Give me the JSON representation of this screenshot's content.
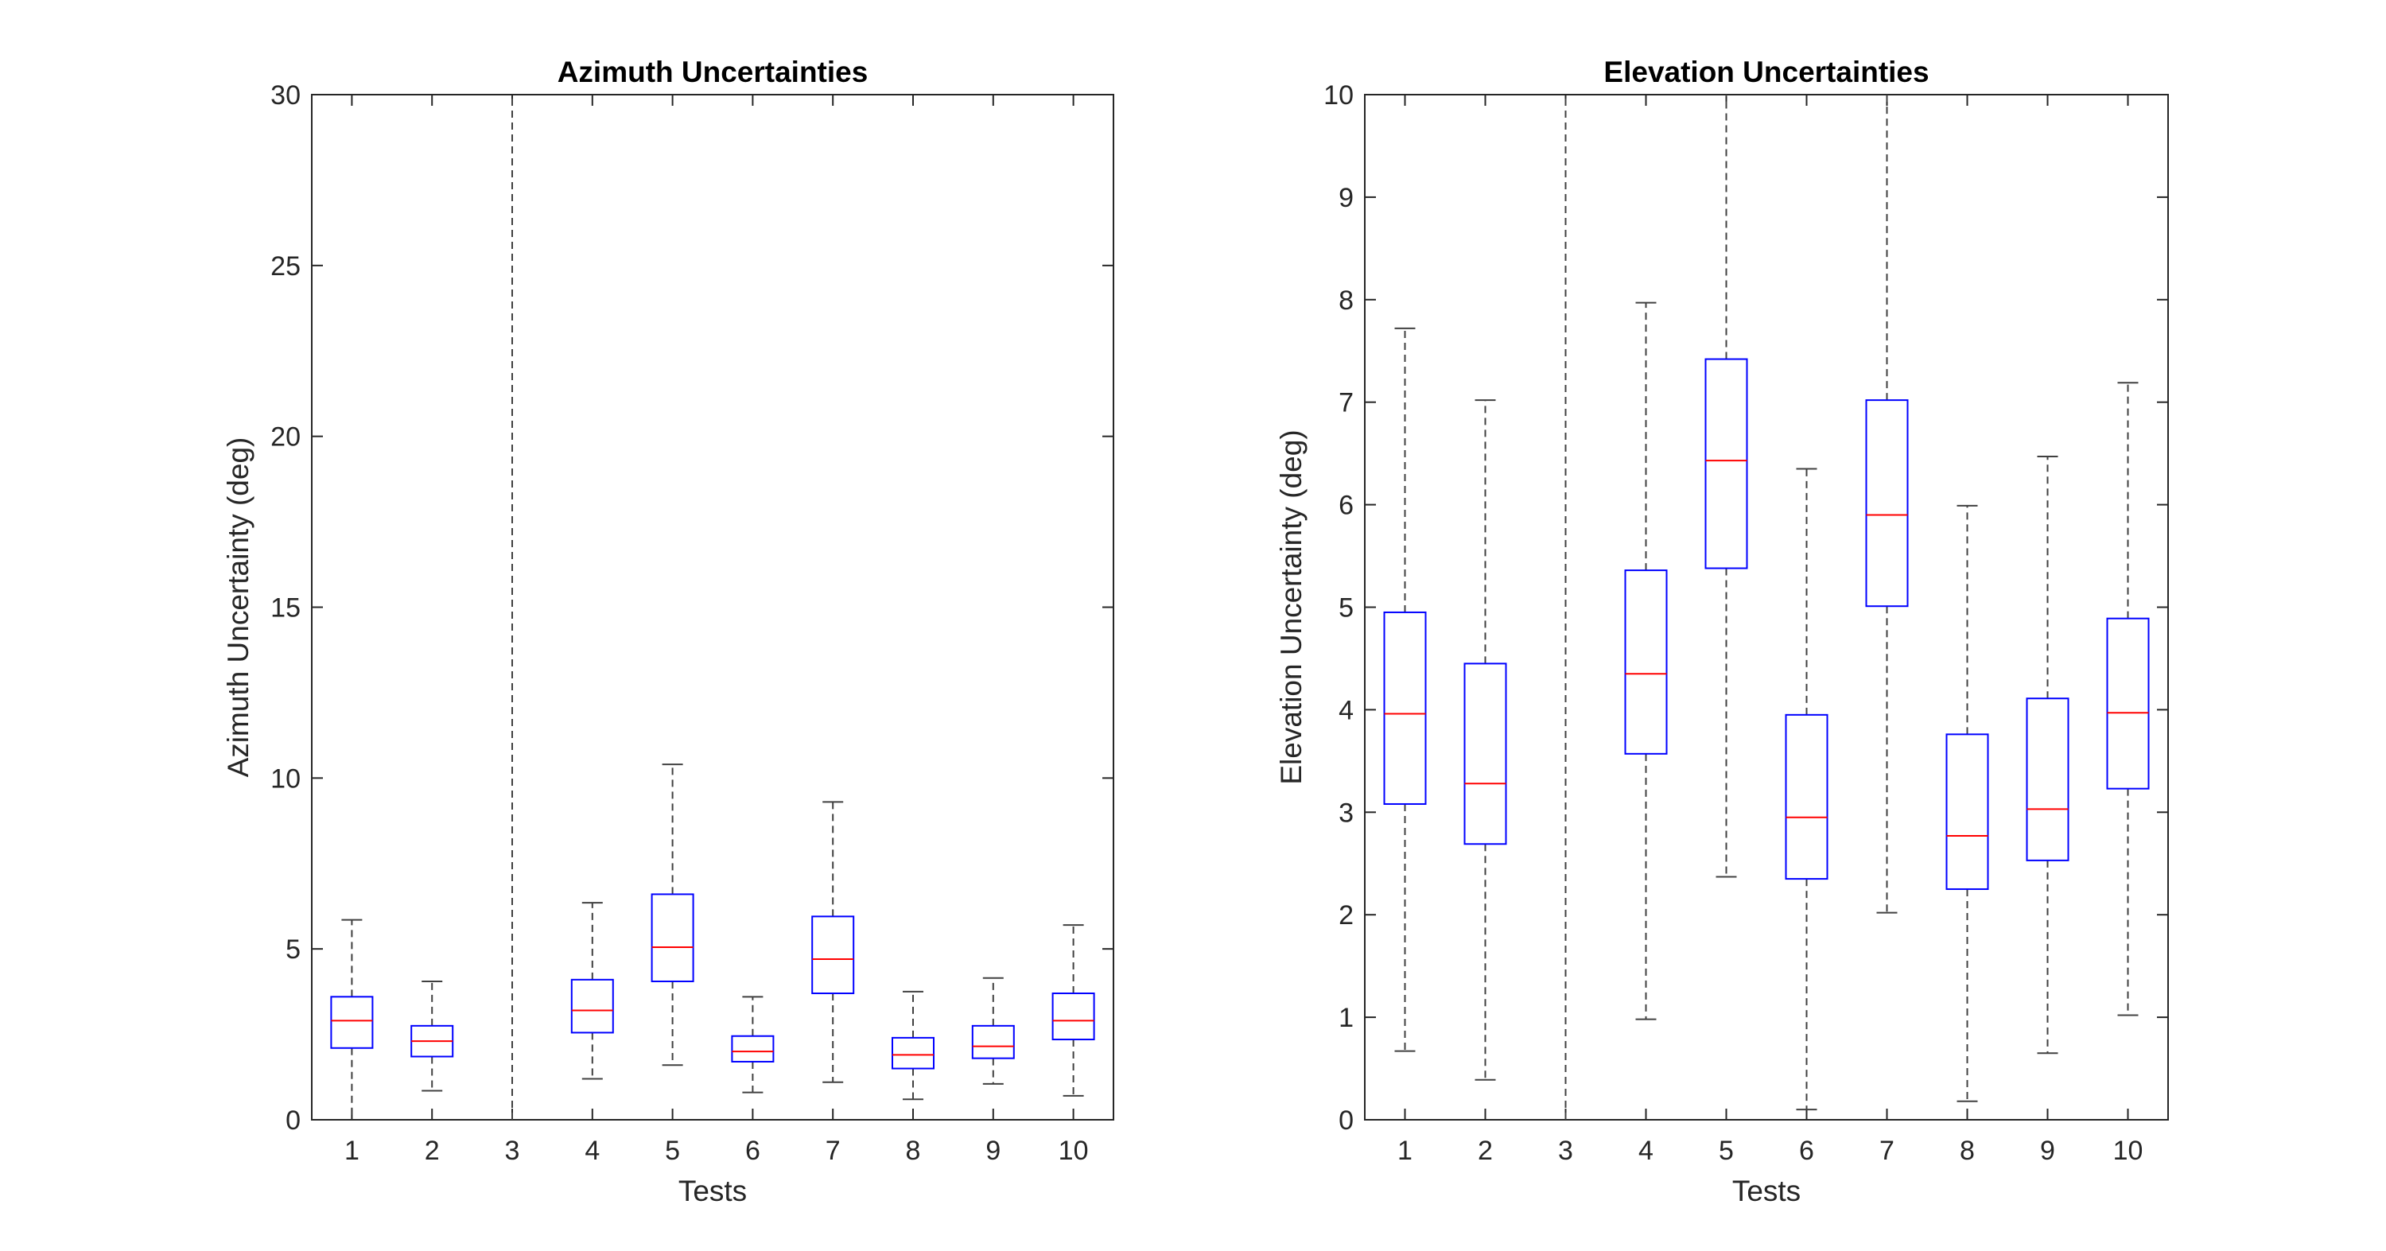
{
  "chart_data": [
    {
      "type": "boxplot",
      "title": "Azimuth Uncertainties",
      "xlabel": "Tests",
      "ylabel": "Azimuth Uncertainty (deg)",
      "categories": [
        "1",
        "2",
        "3",
        "4",
        "5",
        "6",
        "7",
        "8",
        "9",
        "10"
      ],
      "ylim": [
        0,
        30
      ],
      "yticks": [
        0,
        5,
        10,
        15,
        20,
        25,
        30
      ],
      "grid": false,
      "colors": {
        "box": "#0000ff",
        "median": "#ff0000",
        "whisker": "#404040"
      },
      "boxes": [
        {
          "test": "1",
          "whisker_low": 0.0,
          "q1": 2.1,
          "median": 2.9,
          "q3": 3.6,
          "whisker_high": 5.85
        },
        {
          "test": "2",
          "whisker_low": 0.85,
          "q1": 1.85,
          "median": 2.3,
          "q3": 2.75,
          "whisker_high": 4.05
        },
        {
          "test": "3",
          "whisker_low": 0.0,
          "q1": null,
          "median": null,
          "q3": null,
          "whisker_high": 30.0
        },
        {
          "test": "4",
          "whisker_low": 1.2,
          "q1": 2.55,
          "median": 3.2,
          "q3": 4.1,
          "whisker_high": 6.35
        },
        {
          "test": "5",
          "whisker_low": 1.6,
          "q1": 4.05,
          "median": 5.05,
          "q3": 6.6,
          "whisker_high": 10.4
        },
        {
          "test": "6",
          "whisker_low": 0.8,
          "q1": 1.7,
          "median": 2.0,
          "q3": 2.45,
          "whisker_high": 3.6
        },
        {
          "test": "7",
          "whisker_low": 1.1,
          "q1": 3.7,
          "median": 4.7,
          "q3": 5.95,
          "whisker_high": 9.3
        },
        {
          "test": "8",
          "whisker_low": 0.6,
          "q1": 1.5,
          "median": 1.9,
          "q3": 2.4,
          "whisker_high": 3.75
        },
        {
          "test": "9",
          "whisker_low": 1.05,
          "q1": 1.8,
          "median": 2.15,
          "q3": 2.75,
          "whisker_high": 4.15
        },
        {
          "test": "10",
          "whisker_low": 0.7,
          "q1": 2.35,
          "median": 2.9,
          "q3": 3.7,
          "whisker_high": 5.7
        }
      ]
    },
    {
      "type": "boxplot",
      "title": "Elevation Uncertainties",
      "xlabel": "Tests",
      "ylabel": "Elevation Uncertainty (deg)",
      "categories": [
        "1",
        "2",
        "3",
        "4",
        "5",
        "6",
        "7",
        "8",
        "9",
        "10"
      ],
      "ylim": [
        0,
        10
      ],
      "yticks": [
        0,
        1,
        2,
        3,
        4,
        5,
        6,
        7,
        8,
        9,
        10
      ],
      "grid": false,
      "colors": {
        "box": "#0000ff",
        "median": "#ff0000",
        "whisker": "#404040"
      },
      "boxes": [
        {
          "test": "1",
          "whisker_low": 0.67,
          "q1": 3.08,
          "median": 3.96,
          "q3": 4.95,
          "whisker_high": 7.72
        },
        {
          "test": "2",
          "whisker_low": 0.39,
          "q1": 2.69,
          "median": 3.28,
          "q3": 4.45,
          "whisker_high": 7.02
        },
        {
          "test": "3",
          "whisker_low": 0.0,
          "q1": null,
          "median": null,
          "q3": null,
          "whisker_high": 10.0
        },
        {
          "test": "4",
          "whisker_low": 0.98,
          "q1": 3.57,
          "median": 4.35,
          "q3": 5.36,
          "whisker_high": 7.97
        },
        {
          "test": "5",
          "whisker_low": 2.37,
          "q1": 5.38,
          "median": 6.43,
          "q3": 7.42,
          "whisker_high": 10.0
        },
        {
          "test": "6",
          "whisker_low": 0.1,
          "q1": 2.35,
          "median": 2.95,
          "q3": 3.95,
          "whisker_high": 6.35
        },
        {
          "test": "7",
          "whisker_low": 2.02,
          "q1": 5.01,
          "median": 5.9,
          "q3": 7.02,
          "whisker_high": 10.0
        },
        {
          "test": "8",
          "whisker_low": 0.18,
          "q1": 2.25,
          "median": 2.77,
          "q3": 3.76,
          "whisker_high": 5.99
        },
        {
          "test": "9",
          "whisker_low": 0.65,
          "q1": 2.53,
          "median": 3.03,
          "q3": 4.11,
          "whisker_high": 6.47
        },
        {
          "test": "10",
          "whisker_low": 1.02,
          "q1": 3.23,
          "median": 3.97,
          "q3": 4.89,
          "whisker_high": 7.19
        }
      ]
    }
  ]
}
